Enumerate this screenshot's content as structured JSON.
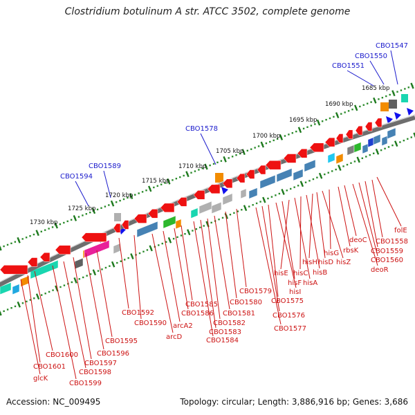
{
  "title": "Clostridium botulinum A str. ATCC 3502, complete genome",
  "footer": {
    "accession": "Accession: NC_009495",
    "summary": "Topology: circular; Length: 3,886,916 bp; Genes: 3,686"
  },
  "ruler_labels": [
    "1685 kbp",
    "1690 kbp",
    "1695 kbp",
    "1700 kbp",
    "1705 kbp",
    "1710 kbp",
    "1715 kbp",
    "1720 kbp",
    "1725 kbp",
    "1730 kbp"
  ],
  "upper_labels": [
    "CBO1547",
    "CBO1550",
    "CBO1551",
    "CBO1578",
    "CBO1589",
    "CBO1594"
  ],
  "lower_labels": [
    "folE",
    "CBO1558",
    "CBO1559",
    "CBO1560",
    "deoR",
    "deoC",
    "rbsK",
    "hisG",
    "hisZ",
    "hisD",
    "hisH",
    "hisB",
    "hisC",
    "hisA",
    "hisE",
    "hisF",
    "hisI",
    "CBO1575",
    "CBO1576",
    "CBO1577",
    "CBO1579",
    "CBO1580",
    "CBO1581",
    "CBO1582",
    "CBO1583",
    "CBO1584",
    "CBO1585",
    "CBO1586",
    "arcA2",
    "arcD",
    "CBO1590",
    "CBO1592",
    "CBO1595",
    "CBO1596",
    "CBO1597",
    "CBO1598",
    "CBO1599",
    "CBO1600",
    "CBO1601",
    "glcK"
  ],
  "colors": {
    "label_blue": "#1a1acc",
    "label_red": "#cc1111",
    "backbone": "#6e6e6e",
    "ruler": "#2a8a2a",
    "gene_red": "#ee1111",
    "gene_blue": "#4682b4",
    "gene_orange": "#f28c00",
    "gene_gray": "#b0b0b0",
    "gene_green": "#2db82d",
    "gene_teal": "#19d6b0",
    "gene_magenta": "#e8209a",
    "marker_blue": "#1010ee"
  }
}
